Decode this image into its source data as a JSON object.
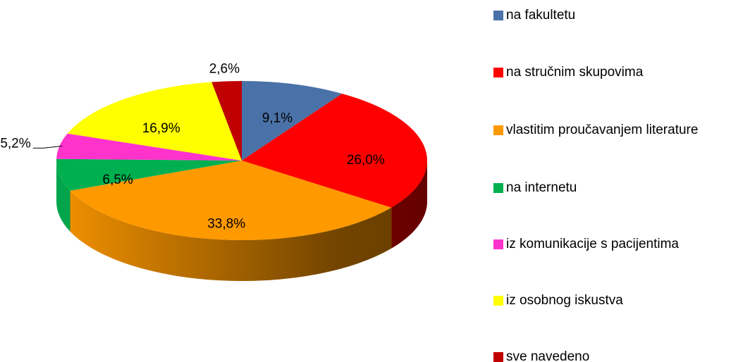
{
  "chart_data": {
    "type": "pie3d",
    "categories": [
      "na fakultetu",
      "na stručnim skupovima",
      "vlastitim proučavanjem literature",
      "na internetu",
      "iz komunikacije s pacijentima",
      "iz osobnog iskustva",
      "sve navedeno"
    ],
    "values": [
      9.1,
      26.0,
      33.8,
      6.5,
      5.2,
      16.9,
      2.6
    ],
    "value_labels": [
      "9,1%",
      "26,0%",
      "33,8%",
      "6,5%",
      "5,2%",
      "16,9%",
      "2,6%"
    ],
    "colors": [
      "#4a72a8",
      "#ff0000",
      "#ff9900",
      "#00b050",
      "#ff33cc",
      "#ffff00",
      "#c00000"
    ],
    "legend": "right"
  }
}
